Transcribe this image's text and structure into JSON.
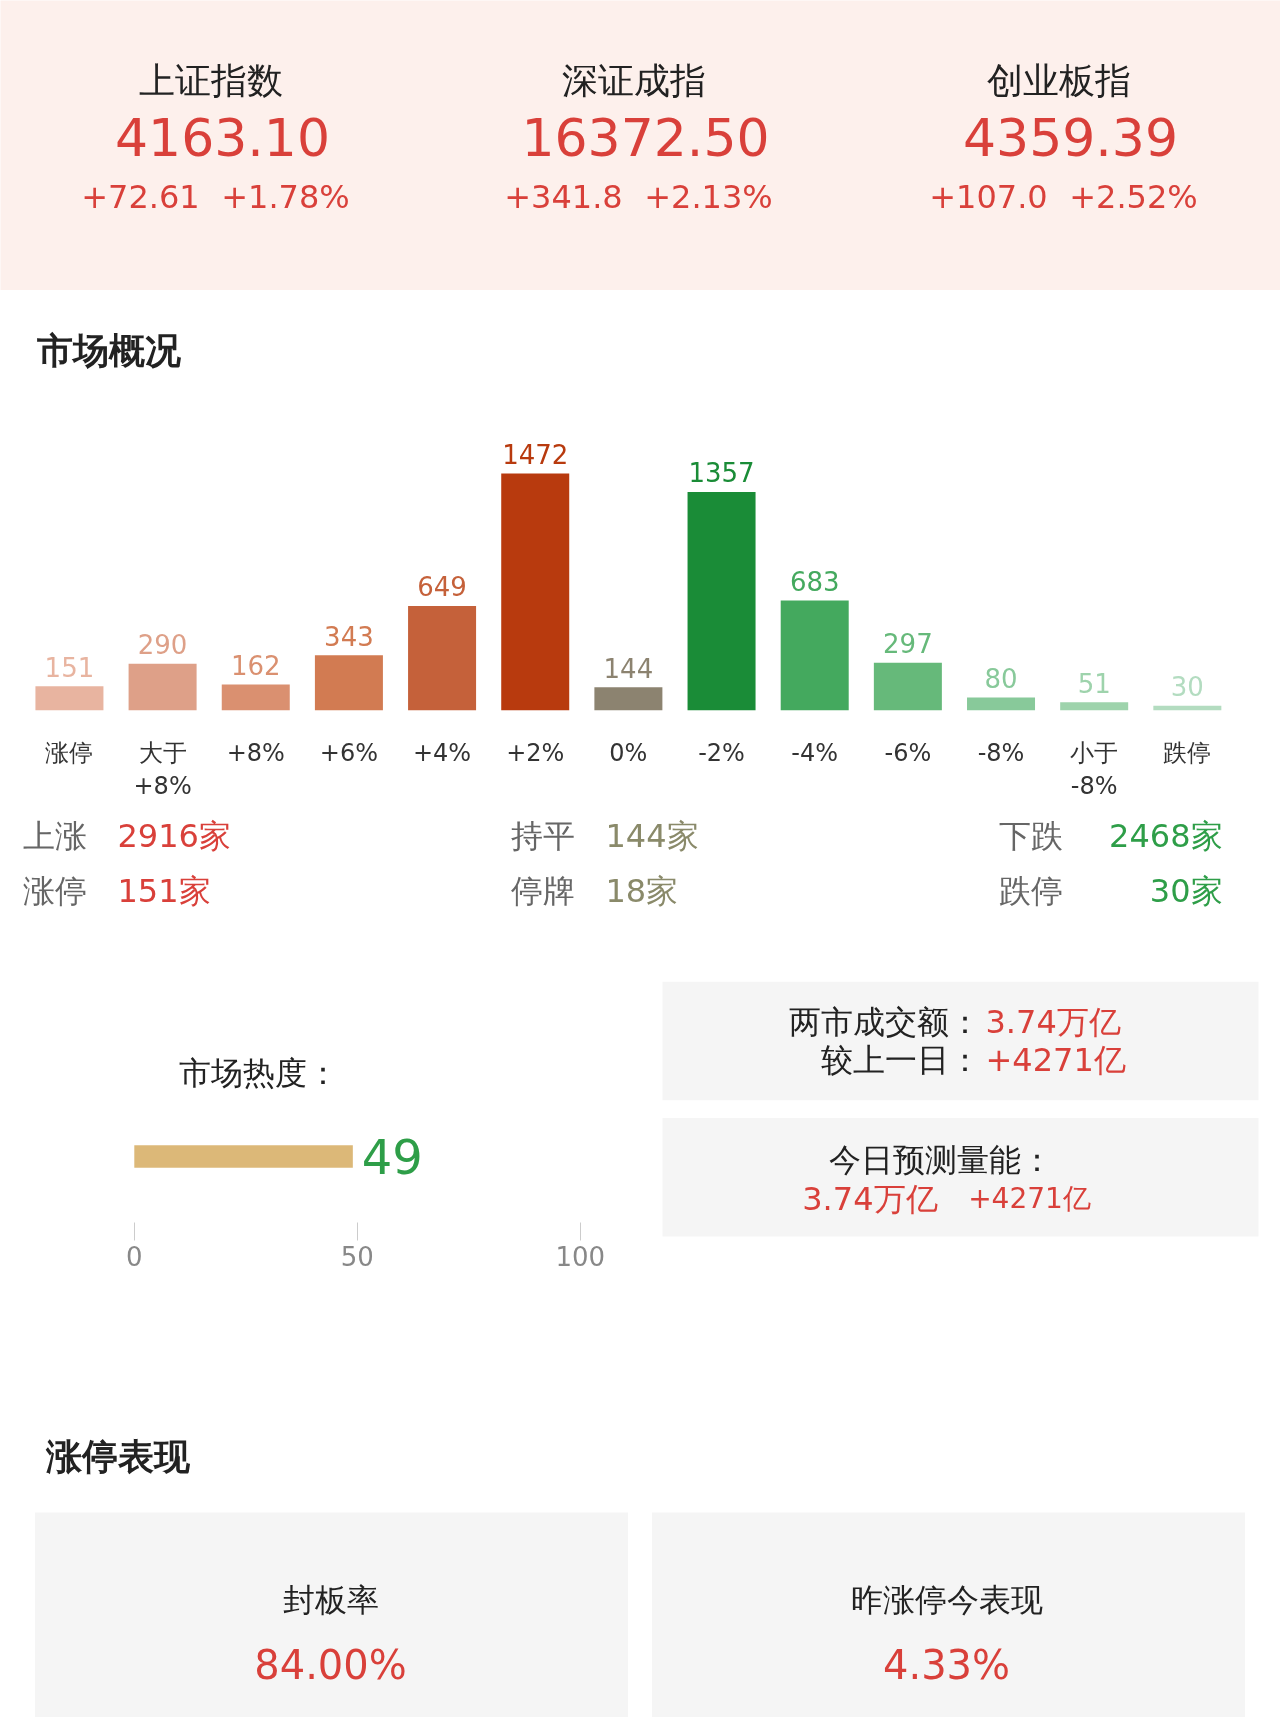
{
  "chart_data": [
    {
      "type": "other",
      "annotations": [
        "上证指数",
        "4163.10",
        "+72.61",
        "+1.78%",
        "深证成指",
        "16372.50",
        "+341.8",
        "+2.13%",
        "创业板指",
        "4359.39",
        "+107.0",
        "+2.52%"
      ]
    },
    {
      "type": "bar",
      "title": "市场概况",
      "categories": [
        "涨停",
        "大于\n+8%",
        "+8%",
        "+6%",
        "+4%",
        "+2%",
        "0%",
        "-2%",
        "-4%",
        "-6%",
        "-8%",
        "小于\n-8%",
        "跌停"
      ],
      "values": [
        151,
        290,
        162,
        343,
        649,
        1472,
        144,
        1357,
        683,
        297,
        80,
        51,
        30
      ],
      "colors": [
        "#e8b4a0",
        "#dea088",
        "#da9070",
        "#d27b52",
        "#c5613a",
        "#b83a0e",
        "#8c8370",
        "#1a8c37",
        "#44a95e",
        "#66b97a",
        "#88c99a",
        "#9ed3ac",
        "#b3dcc0"
      ],
      "data_labels": true,
      "tick_labels": "x",
      "grid": false
    },
    {
      "type": "other",
      "annotations": [
        "上涨",
        "2916家",
        "持平",
        "144家",
        "下跌",
        "2468家",
        "涨停",
        "151家",
        "停牌",
        "18家",
        "跌停",
        "30家"
      ]
    },
    {
      "type": "bar",
      "orientation": "horizontal",
      "title": "市场热度：",
      "categories": [
        null
      ],
      "values": [
        49
      ],
      "color": "#dcb878",
      "xlim": [
        0,
        100
      ],
      "xticks": [
        0,
        50,
        100
      ],
      "data_labels": true,
      "grid": false
    },
    {
      "type": "other",
      "annotations": [
        "两市成交额：",
        "3.74万亿",
        "较上一日：",
        "+4271亿",
        "今日预测量能：",
        "3.74万亿",
        "+4271亿"
      ]
    },
    {
      "type": "other",
      "title": "涨停表现",
      "annotations": [
        "封板率",
        "84.00%",
        "昨涨停今表现",
        "4.33%"
      ]
    }
  ]
}
